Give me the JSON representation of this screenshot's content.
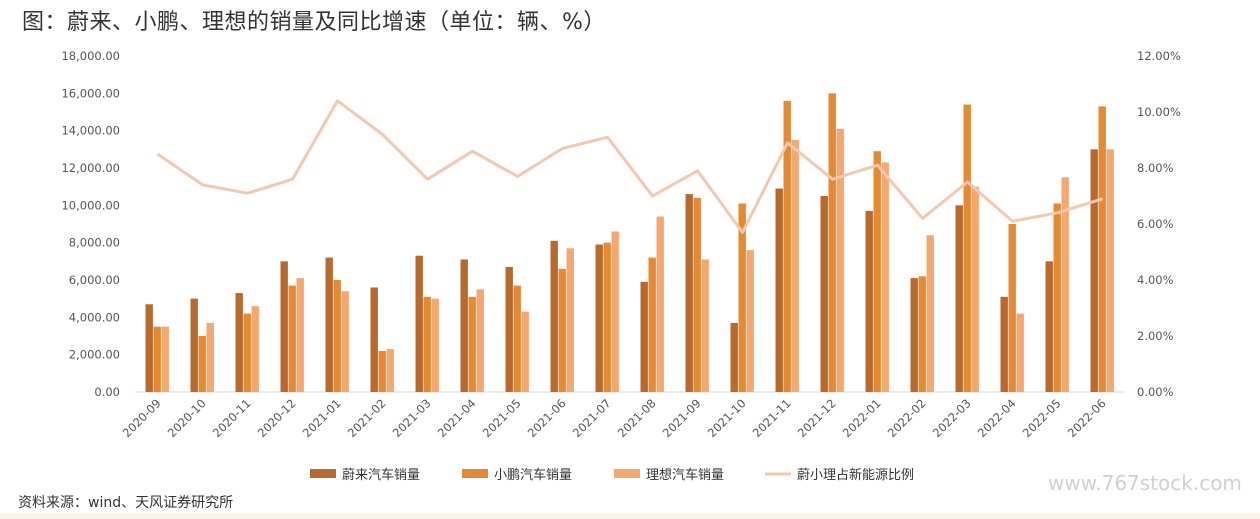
{
  "title": "图：蔚来、小鹏、理想的销量及同比增速（单位：辆、%）",
  "source": "资料来源：wind、天风证券研究所",
  "watermark": "www.767stock.com",
  "colors": {
    "nio": "#b8692d",
    "xpeng": "#e48a35",
    "lixiang": "#f4a86f",
    "ratio": "#f6c7af",
    "axis": "#d9d9d9"
  },
  "chart_data": {
    "type": "bar",
    "categories": [
      "2020-09",
      "2020-10",
      "2020-11",
      "2020-12",
      "2021-01",
      "2021-02",
      "2021-03",
      "2021-04",
      "2021-05",
      "2021-06",
      "2021-07",
      "2021-08",
      "2021-09",
      "2021-10",
      "2021-11",
      "2021-12",
      "2022-01",
      "2022-02",
      "2022-03",
      "2022-04",
      "2022-05",
      "2022-06"
    ],
    "left_axis": {
      "ylim": [
        0,
        18000
      ],
      "tick_labels": [
        "0.00",
        "2,000.00",
        "4,000.00",
        "6,000.00",
        "8,000.00",
        "10,000.00",
        "12,000.00",
        "14,000.00",
        "16,000.00",
        "18,000.00"
      ]
    },
    "right_axis": {
      "ylim": [
        0,
        12
      ],
      "tick_labels": [
        "0.00%",
        "2.00%",
        "4.00%",
        "6.00%",
        "8.00%",
        "10.00%",
        "12.00%"
      ]
    },
    "series": [
      {
        "name": "蔚来汽车销量",
        "type": "bar",
        "axis": "left",
        "values": [
          4700,
          5000,
          5300,
          7000,
          7200,
          5600,
          7300,
          7100,
          6700,
          8100,
          7900,
          5900,
          10600,
          3700,
          10900,
          10500,
          9700,
          6100,
          10000,
          5100,
          7000,
          13000
        ]
      },
      {
        "name": "小鹏汽车销量",
        "type": "bar",
        "axis": "left",
        "values": [
          3500,
          3000,
          4200,
          5700,
          6000,
          2200,
          5100,
          5100,
          5700,
          6600,
          8000,
          7200,
          10400,
          10100,
          15600,
          16000,
          12900,
          6200,
          15400,
          9000,
          10100,
          15300
        ]
      },
      {
        "name": "理想汽车销量",
        "type": "bar",
        "axis": "left",
        "values": [
          3500,
          3700,
          4600,
          6100,
          5400,
          2300,
          5000,
          5500,
          4300,
          7700,
          8600,
          9400,
          7100,
          7600,
          13500,
          14100,
          12300,
          8400,
          11000,
          4200,
          11500,
          13000
        ]
      },
      {
        "name": "蔚小理占新能源比例",
        "type": "line",
        "axis": "right",
        "values": [
          8.5,
          7.4,
          7.1,
          7.6,
          10.4,
          9.2,
          7.6,
          8.6,
          7.7,
          8.7,
          9.1,
          7.0,
          7.9,
          5.7,
          8.9,
          7.6,
          8.1,
          6.2,
          7.5,
          6.1,
          6.4,
          6.9
        ]
      }
    ],
    "legend_position": "bottom",
    "grid": false
  }
}
